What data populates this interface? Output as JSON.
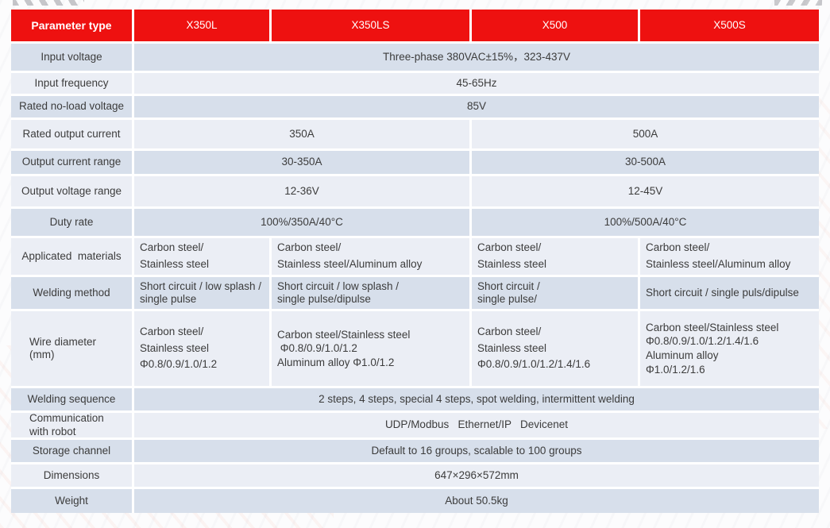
{
  "colors": {
    "header_bg": "#ee1110",
    "header_text": "#ffffff",
    "row_dark": "#d7dfeb",
    "row_light": "#ebeef5",
    "cell_gap": "#ffffff",
    "text": "#3c3c3c"
  },
  "table": {
    "header": {
      "param_col": "Parameter type",
      "models": [
        "X350L",
        "X350LS",
        "X500",
        "X500S"
      ]
    },
    "rows": [
      {
        "label": "Input voltage",
        "full": "Three-phase 380VAC±15%，323-437V"
      },
      {
        "label": "Input frequency",
        "full": "45-65Hz"
      },
      {
        "label": "Rated no-load voltage",
        "full": "85V"
      },
      {
        "label": "Rated output current",
        "left": "350A",
        "right": "500A"
      },
      {
        "label": "Output current range",
        "left": "30-350A",
        "right": "30-500A"
      },
      {
        "label": "Output voltage range",
        "left": "12-36V",
        "right": "12-45V"
      },
      {
        "label": "Duty rate",
        "left": "100%/350A/40°C",
        "right": "100%/500A/40°C"
      },
      {
        "label": "Applicated  materials",
        "cells": [
          "Carbon steel/\nStainless steel",
          "Carbon steel/\nStainless steel/Aluminum alloy",
          "Carbon steel/\nStainless steel",
          "Carbon steel/\nStainless steel/Aluminum alloy"
        ]
      },
      {
        "label": "Welding method",
        "cells": [
          "Short circuit / low splash /\nsingle pulse",
          "Short circuit / low splash /\nsingle pulse/dipulse",
          "Short circuit /\nsingle pulse/",
          "Short circuit / single puls/dipulse"
        ]
      },
      {
        "label": "Wire diameter\n(mm)",
        "cells": [
          "Carbon steel/\nStainless steel\nΦ0.8/0.9/1.0/1.2",
          "Carbon steel/Stainless steel\n Φ0.8/0.9/1.0/1.2\nAluminum alloy Φ1.0/1.2",
          "Carbon steel/\nStainless steel\nΦ0.8/0.9/1.0/1.2/1.4/1.6",
          "Carbon steel/Stainless steel\nΦ0.8/0.9/1.0/1.2/1.4/1.6\nAluminum alloy\nΦ1.0/1.2/1.6"
        ]
      },
      {
        "label": "Welding sequence",
        "full": "2 steps, 4 steps, special 4 steps, spot welding, intermittent welding"
      },
      {
        "label": "Communication\nwith robot",
        "full": "UDP/Modbus   Ethernet/IP   Devicenet"
      },
      {
        "label": "Storage channel",
        "full": "Default to 16 groups, scalable to 100 groups"
      },
      {
        "label": "Dimensions",
        "full": "647×296×572mm"
      },
      {
        "label": "Weight",
        "full": "About 50.5kg"
      }
    ]
  }
}
